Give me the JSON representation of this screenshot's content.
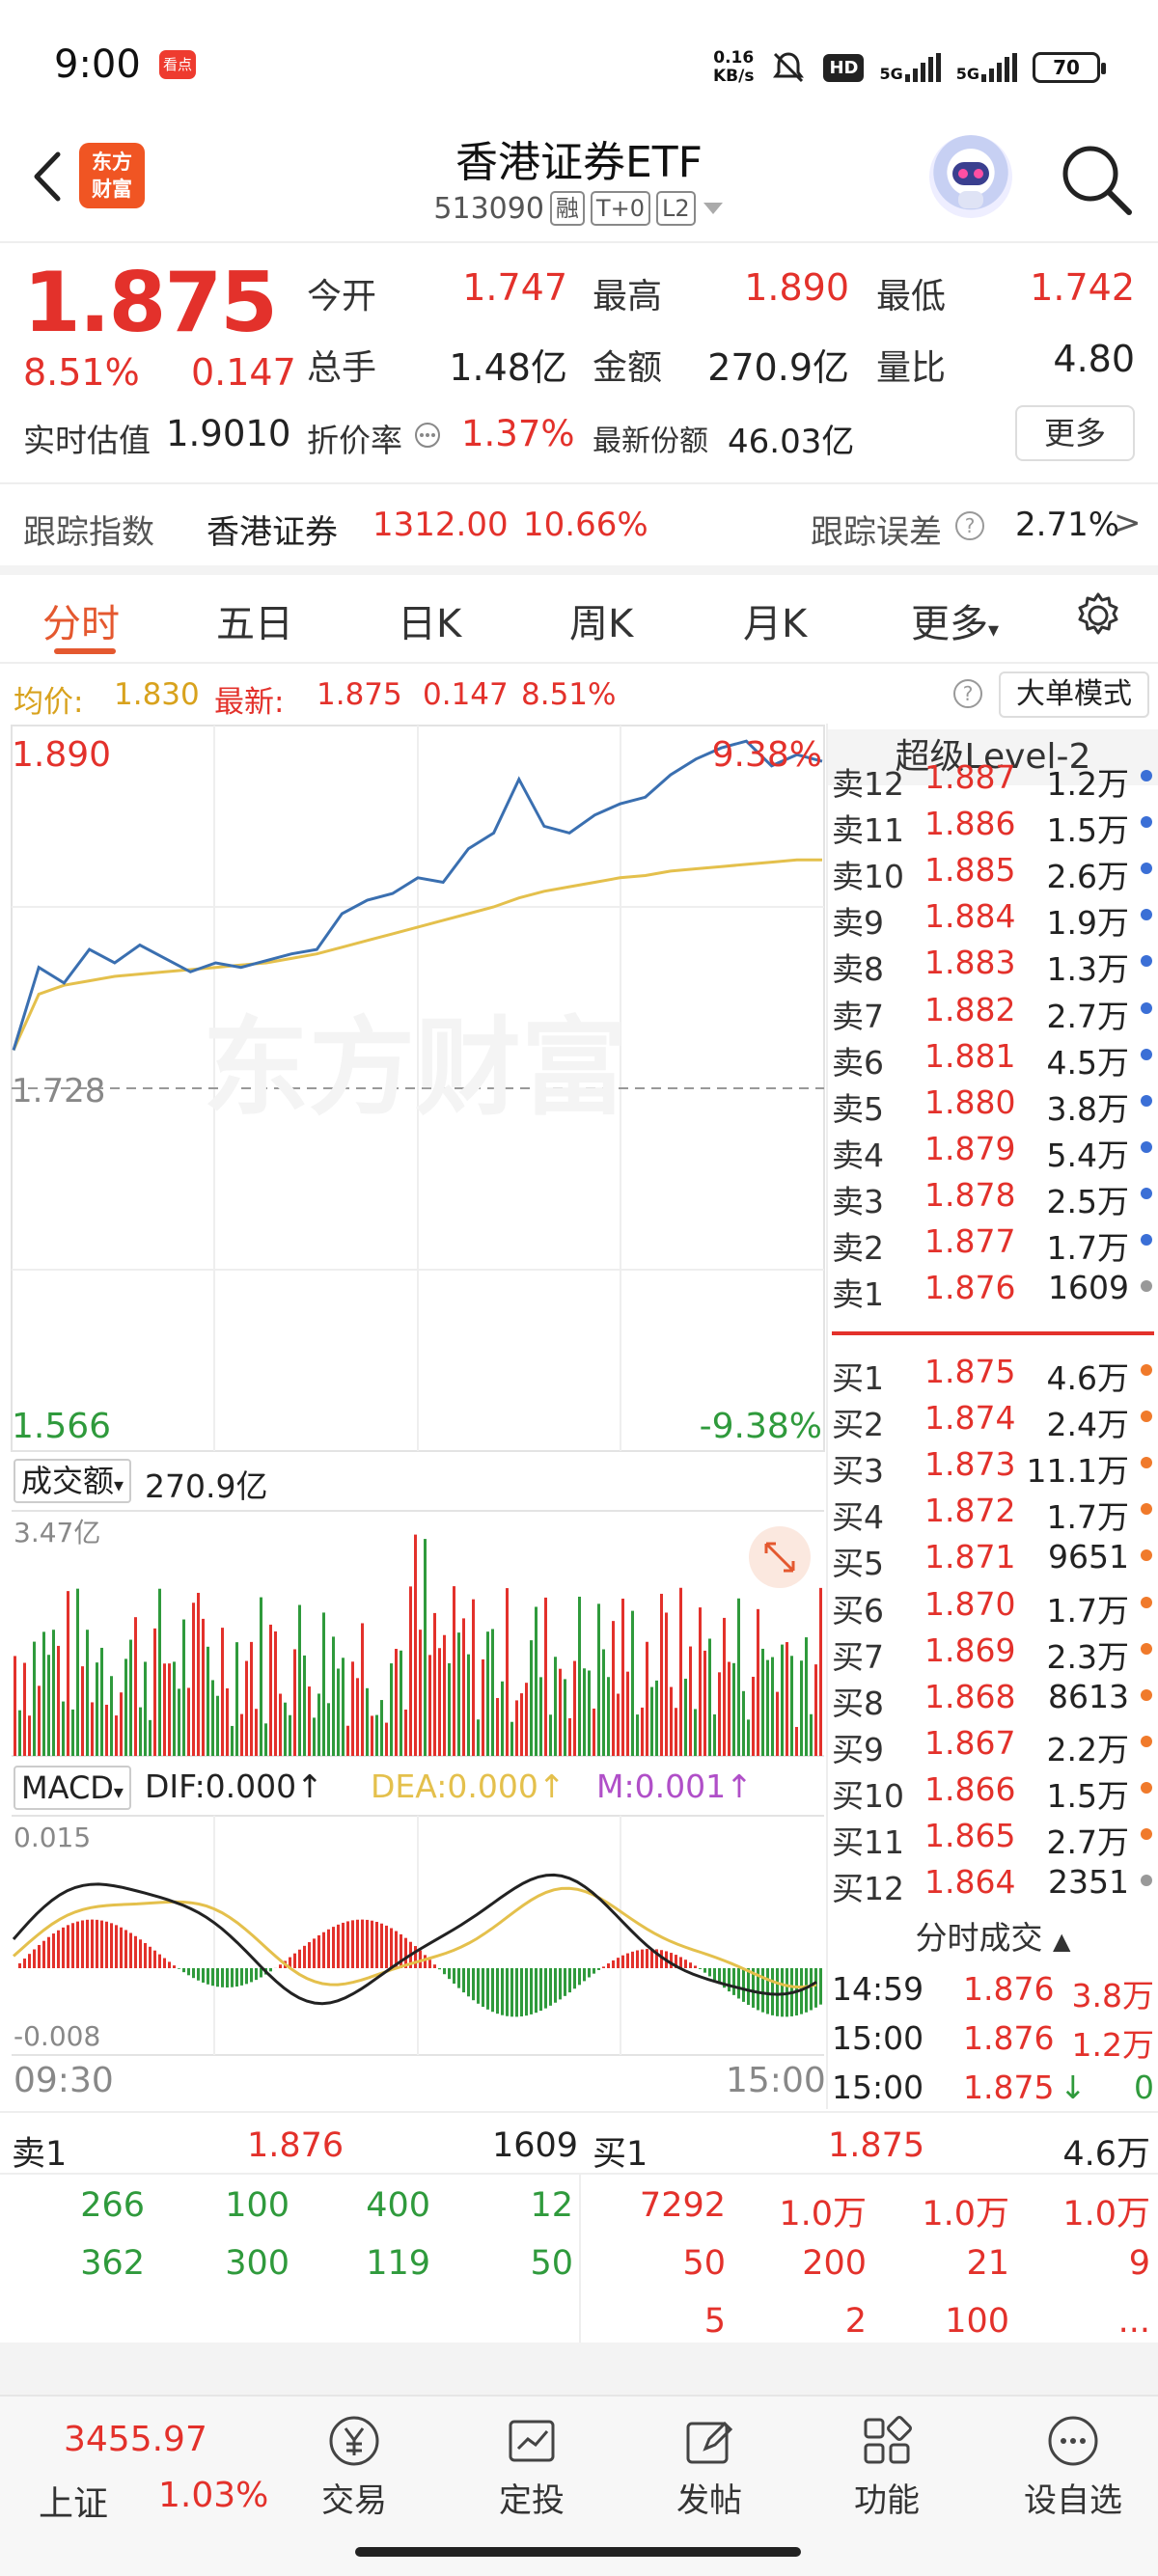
{
  "status_bar": {
    "time": "9:00",
    "app_icon_text": "看点",
    "net_speed_value": "0.16",
    "net_speed_unit": "KB/s",
    "hd_label": "HD",
    "sim1_label": "5G",
    "sim2_label": "5G",
    "battery": "70"
  },
  "header": {
    "logo_line1": "东方",
    "logo_line2": "财富",
    "title": "香港证券ETF",
    "code": "513090",
    "tags": [
      "融",
      "T+0",
      "L2"
    ]
  },
  "quote": {
    "price": "1.875",
    "change_pct": "8.51%",
    "change": "0.147",
    "fields": [
      {
        "label": "今开",
        "value": "1.747",
        "color": "red"
      },
      {
        "label": "最高",
        "value": "1.890",
        "color": "red"
      },
      {
        "label": "最低",
        "value": "1.742",
        "color": "red"
      },
      {
        "label": "总手",
        "value": "1.48亿",
        "color": "dark"
      },
      {
        "label": "金额",
        "value": "270.9亿",
        "color": "dark"
      },
      {
        "label": "量比",
        "value": "4.80",
        "color": "dark"
      }
    ],
    "est_label": "实时估值",
    "est_value": "1.9010",
    "discount_label": "折价率",
    "discount_value": "1.37%",
    "shares_label": "最新份额",
    "shares_value": "46.03亿",
    "more_label": "更多"
  },
  "tracking": {
    "label": "跟踪指数",
    "index_name": "香港证券",
    "index_value": "1312.00",
    "index_pct": "10.66%",
    "error_label": "跟踪误差",
    "error_value": "2.71%"
  },
  "tabs": [
    "分时",
    "五日",
    "日K",
    "周K",
    "月K",
    "更多"
  ],
  "avg_row": {
    "avg_label": "均价:",
    "avg_value": "1.830",
    "latest_label": "最新:",
    "latest_value": "1.875",
    "latest_change": "0.147",
    "latest_pct": "8.51%",
    "bigorder_label": "大单模式"
  },
  "price_chart": {
    "y_top": "1.890",
    "y_mid": "1.728",
    "y_bottom": "1.566",
    "pct_top": "9.38%",
    "pct_bottom": "-9.38%",
    "watermark": "东方财富"
  },
  "volume_chart": {
    "label": "成交额",
    "total": "270.9亿",
    "y_max": "3.47亿"
  },
  "macd_chart": {
    "label": "MACD",
    "dif": "DIF:0.000",
    "dea": "DEA:0.000",
    "m": "M:0.001",
    "y_max": "0.015",
    "y_min": "-0.008",
    "time_start": "09:30",
    "time_end": "15:00"
  },
  "chart_data": {
    "type": "line",
    "title": "",
    "xlabel": "",
    "ylabel": "",
    "ylim": [
      1.566,
      1.89
    ],
    "x_range": [
      "09:30",
      "15:00"
    ],
    "series": [
      {
        "name": "",
        "values": [
          1.745,
          1.782,
          1.775,
          1.79,
          1.784,
          1.792,
          1.786,
          1.78,
          1.784,
          1.782,
          1.785,
          1.788,
          1.79,
          1.806,
          1.812,
          1.815,
          1.822,
          1.82,
          1.835,
          1.842,
          1.866,
          1.845,
          1.842,
          1.85,
          1.855,
          1.858,
          1.868,
          1.875,
          1.88,
          1.883,
          1.872,
          1.877,
          1.874
        ]
      },
      {
        "name": "均价",
        "values": [
          1.745,
          1.77,
          1.774,
          1.776,
          1.778,
          1.779,
          1.78,
          1.781,
          1.782,
          1.783,
          1.784,
          1.786,
          1.788,
          1.791,
          1.794,
          1.797,
          1.8,
          1.803,
          1.806,
          1.809,
          1.813,
          1.816,
          1.818,
          1.82,
          1.822,
          1.823,
          1.825,
          1.826,
          1.827,
          1.828,
          1.829,
          1.83,
          1.83
        ]
      }
    ]
  },
  "order_book": {
    "title": "超级Level-2",
    "asks": [
      {
        "label": "卖12",
        "price": "1.887",
        "vol": "1.2万",
        "dot": "#3b6fd6"
      },
      {
        "label": "卖11",
        "price": "1.886",
        "vol": "1.5万",
        "dot": "#3b6fd6"
      },
      {
        "label": "卖10",
        "price": "1.885",
        "vol": "2.6万",
        "dot": "#3b6fd6"
      },
      {
        "label": "卖9",
        "price": "1.884",
        "vol": "1.9万",
        "dot": "#3b6fd6"
      },
      {
        "label": "卖8",
        "price": "1.883",
        "vol": "1.3万",
        "dot": "#3b6fd6"
      },
      {
        "label": "卖7",
        "price": "1.882",
        "vol": "2.7万",
        "dot": "#3b6fd6"
      },
      {
        "label": "卖6",
        "price": "1.881",
        "vol": "4.5万",
        "dot": "#3b6fd6"
      },
      {
        "label": "卖5",
        "price": "1.880",
        "vol": "3.8万",
        "dot": "#3b6fd6"
      },
      {
        "label": "卖4",
        "price": "1.879",
        "vol": "5.4万",
        "dot": "#3b6fd6"
      },
      {
        "label": "卖3",
        "price": "1.878",
        "vol": "2.5万",
        "dot": "#3b6fd6"
      },
      {
        "label": "卖2",
        "price": "1.877",
        "vol": "1.7万",
        "dot": "#3b6fd6"
      },
      {
        "label": "卖1",
        "price": "1.876",
        "vol": "1609",
        "dot": "#999999"
      }
    ],
    "bids": [
      {
        "label": "买1",
        "price": "1.875",
        "vol": "4.6万",
        "dot": "#f07a2b"
      },
      {
        "label": "买2",
        "price": "1.874",
        "vol": "2.4万",
        "dot": "#f07a2b"
      },
      {
        "label": "买3",
        "price": "1.873",
        "vol": "11.1万",
        "dot": "#f07a2b"
      },
      {
        "label": "买4",
        "price": "1.872",
        "vol": "1.7万",
        "dot": "#f07a2b"
      },
      {
        "label": "买5",
        "price": "1.871",
        "vol": "9651",
        "dot": "#f07a2b"
      },
      {
        "label": "买6",
        "price": "1.870",
        "vol": "1.7万",
        "dot": "#f07a2b"
      },
      {
        "label": "买7",
        "price": "1.869",
        "vol": "2.3万",
        "dot": "#f07a2b"
      },
      {
        "label": "买8",
        "price": "1.868",
        "vol": "8613",
        "dot": "#f07a2b"
      },
      {
        "label": "买9",
        "price": "1.867",
        "vol": "2.2万",
        "dot": "#f07a2b"
      },
      {
        "label": "买10",
        "price": "1.866",
        "vol": "1.5万",
        "dot": "#f07a2b"
      },
      {
        "label": "买11",
        "price": "1.865",
        "vol": "2.7万",
        "dot": "#f07a2b"
      },
      {
        "label": "买12",
        "price": "1.864",
        "vol": "2351",
        "dot": "#999999"
      }
    ]
  },
  "ticks": {
    "title": "分时成交",
    "rows": [
      {
        "time": "14:59",
        "price": "1.876",
        "vol": "3.8万",
        "arrow": "",
        "vol_color": "red"
      },
      {
        "time": "15:00",
        "price": "1.876",
        "vol": "1.2万",
        "arrow": "",
        "vol_color": "red"
      },
      {
        "time": "15:00",
        "price": "1.875",
        "vol": "0",
        "arrow": "↓",
        "vol_color": "green"
      }
    ]
  },
  "level_panel": {
    "ask_label": "卖1",
    "ask_price": "1.876",
    "ask_vol": "1609",
    "bid_label": "买1",
    "bid_price": "1.875",
    "bid_vol": "4.6万",
    "ask_queue": [
      [
        "266",
        "100",
        "400",
        "12"
      ],
      [
        "362",
        "300",
        "119",
        "50"
      ]
    ],
    "bid_queue": [
      [
        "7292",
        "1.0万",
        "1.0万",
        "1.0万"
      ],
      [
        "50",
        "200",
        "21",
        "9"
      ],
      [
        "5",
        "2",
        "100",
        "..."
      ]
    ]
  },
  "bottom_nav": {
    "index_value": "3455.97",
    "index_name": "上证",
    "index_pct": "1.03%",
    "items": [
      "交易",
      "定投",
      "发帖",
      "功能",
      "设自选"
    ]
  }
}
